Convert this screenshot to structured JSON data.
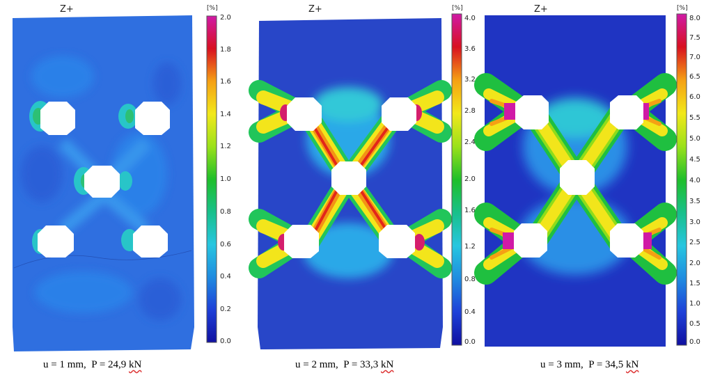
{
  "panels": [
    {
      "view_label": "Z+",
      "unit_label": "[%]",
      "ticks": [
        "2.0",
        "1.8",
        "1.6",
        "1.4",
        "1.2",
        "1.0",
        "0.8",
        "0.6",
        "0.4",
        "0.2",
        "0.0"
      ],
      "caption_main": "u = 1 mm,  P = 24,9 ",
      "caption_unit": "kN"
    },
    {
      "view_label": "Z+",
      "unit_label": "[%]",
      "ticks": [
        "4.0",
        "3.6",
        "3.2",
        "2.8",
        "2.4",
        "2.0",
        "1.6",
        "1.2",
        "0.8",
        "0.4",
        "0.0"
      ],
      "caption_main": "u = 2 mm,  P = 33,3 ",
      "caption_unit": "kN"
    },
    {
      "view_label": "Z+",
      "unit_label": "[%]",
      "ticks": [
        "8.0",
        "7.5",
        "7.0",
        "6.5",
        "6.0",
        "5.5",
        "5.0",
        "4.5",
        "4.0",
        "3.5",
        "3.0",
        "2.5",
        "2.0",
        "1.5",
        "1.0",
        "0.5",
        "0.0"
      ],
      "caption_main": "u = 3 mm,  P = 34,5 ",
      "caption_unit": "kN"
    }
  ],
  "colors": {
    "scale": [
      "#1010a0",
      "#1e40d8",
      "#1f8be0",
      "#27c6e0",
      "#18c08a",
      "#1fbf2a",
      "#9be11a",
      "#f2e81a",
      "#f5a014",
      "#ee4a10",
      "#d81020",
      "#d01aa6"
    ]
  }
}
